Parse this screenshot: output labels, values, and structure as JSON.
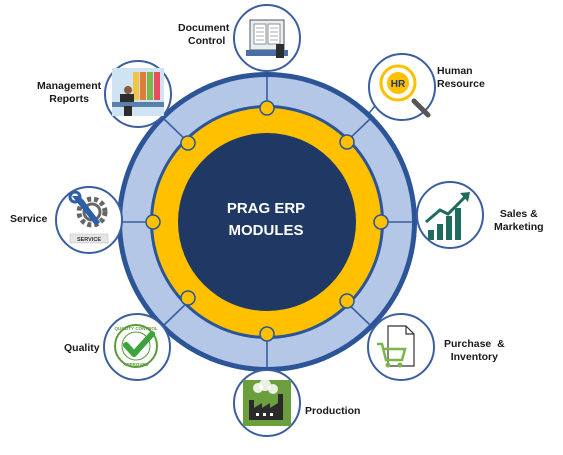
{
  "center": {
    "line1": "PRAG ERP",
    "line2": "MODULES"
  },
  "colors": {
    "outer_ring": "#2c5597",
    "middle_ring": "#b4c7e7",
    "inner_ring": "#ffc000",
    "core": "#1f3864",
    "icon_border": "#3b5ea0",
    "node_fill": "#ffc000"
  },
  "modules": [
    {
      "key": "document",
      "line1": "Document",
      "line2": "Control",
      "icon": "document-icon"
    },
    {
      "key": "hr",
      "line1": "Human",
      "line2": "Resource",
      "icon": "hr-magnifier-icon",
      "badge": "HR"
    },
    {
      "key": "sales",
      "line1": "Sales &",
      "line2": "Marketing",
      "icon": "growth-chart-icon"
    },
    {
      "key": "purchase",
      "line1": "Purchase  &",
      "line2": "Inventory",
      "icon": "shopping-cart-icon"
    },
    {
      "key": "production",
      "line1": "Production",
      "line2": "",
      "icon": "factory-icon"
    },
    {
      "key": "quality",
      "line1": "Quality",
      "line2": "",
      "icon": "quality-approved-stamp-icon",
      "stamp_top": "QUALITY CONTROL",
      "stamp_bottom": "APPROVED"
    },
    {
      "key": "service",
      "line1": "Service",
      "line2": "",
      "icon": "wrench-gear-icon",
      "tag": "SERVICE"
    },
    {
      "key": "management",
      "line1": "Management",
      "line2": "Reports",
      "icon": "office-desk-icon"
    }
  ]
}
